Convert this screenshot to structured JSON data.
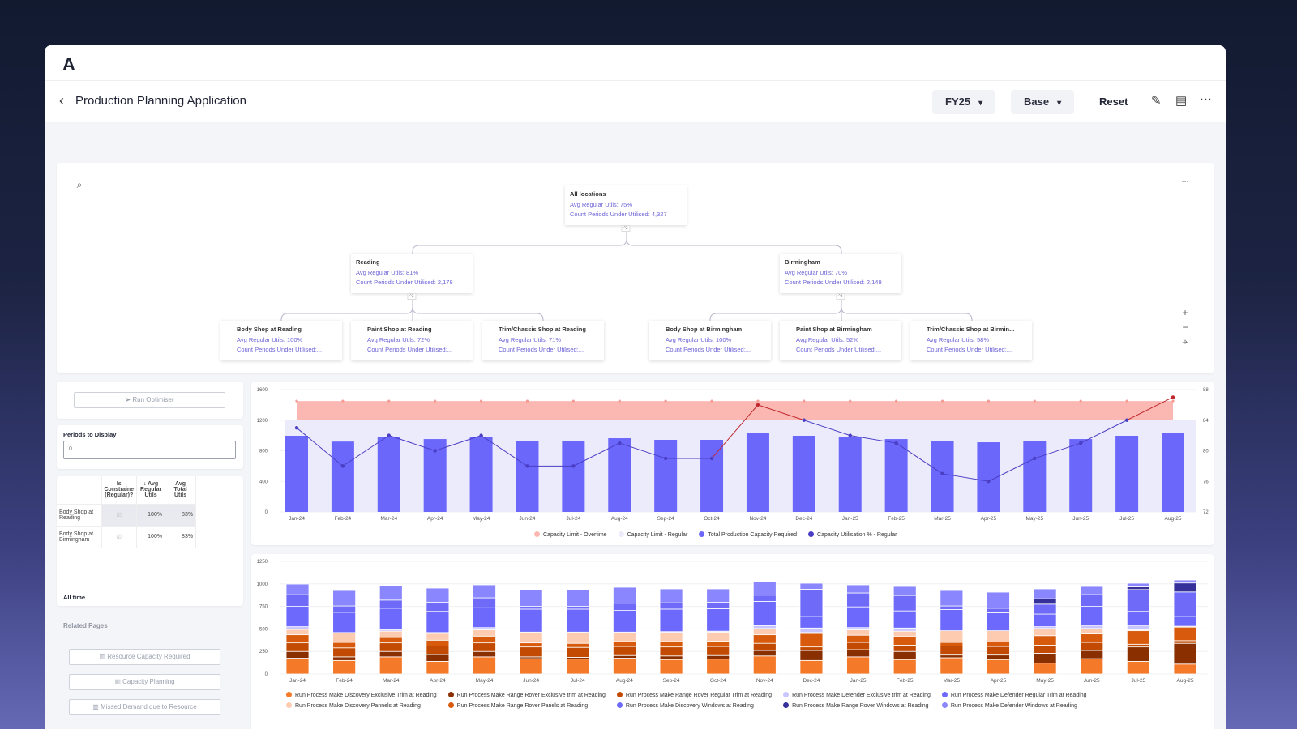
{
  "app": {
    "logo": "A",
    "title": "Production Planning Application",
    "back_icon": "chevron-left-icon",
    "fy_select": "FY25",
    "scenario_select": "Base",
    "reset_label": "Reset",
    "icons": [
      "pencil-icon",
      "comment-icon",
      "more-icon"
    ]
  },
  "tree": {
    "root": {
      "name": "All locations",
      "m1": "Avg Regular Utils: 75%",
      "m2": "Count Periods Under Utilised: 4,327",
      "expand": "^2"
    },
    "mid": [
      {
        "name": "Reading",
        "m1": "Avg Regular Utils: 81%",
        "m2": "Count Periods Under Utilised: 2,178",
        "expand": "^3"
      },
      {
        "name": "Birmingham",
        "m1": "Avg Regular Utils: 70%",
        "m2": "Count Periods Under Utilised: 2,149",
        "expand": "^3"
      }
    ],
    "leaves": [
      {
        "name": "Body Shop at Reading",
        "m1": "Avg Regular Utils: 100%",
        "m2": "Count Periods Under Utilised:..."
      },
      {
        "name": "Paint Shop at Reading",
        "m1": "Avg Regular Utils: 72%",
        "m2": "Count Periods Under Utilised:..."
      },
      {
        "name": "Trim/Chassis Shop at Reading",
        "m1": "Avg Regular Utils: 71%",
        "m2": "Count Periods Under Utilised:..."
      },
      {
        "name": "Body Shop at Birmingham",
        "m1": "Avg Regular Utils: 100%",
        "m2": "Count Periods Under Utilised:..."
      },
      {
        "name": "Paint Shop at Birmingham",
        "m1": "Avg Regular Utils: 52%",
        "m2": "Count Periods Under Utilised:..."
      },
      {
        "name": "Trim/Chassis Shop at Birmin...",
        "m1": "Avg Regular Utils: 58%",
        "m2": "Count Periods Under Utilised:..."
      }
    ],
    "controls": {
      "zoom_in": "+",
      "zoom_out": "−",
      "recenter": "⌖",
      "more": "···"
    }
  },
  "left": {
    "run_optimiser": "Run Optimiser",
    "periods_label": "Periods to Display",
    "periods_value": "0",
    "table": {
      "headers": [
        "",
        "Is Constraine (Regular)?",
        "↓ Avg Regular Utils",
        "Avg Total Utils"
      ],
      "rows": [
        {
          "name": "Body Shop at Reading",
          "constrained": true,
          "avg_regular": "100%",
          "avg_total": "83%"
        },
        {
          "name": "Body Shop at Birmingham",
          "constrained": true,
          "avg_regular": "100%",
          "avg_total": "83%"
        }
      ]
    },
    "footer": "All time",
    "related_title": "Related Pages",
    "related": [
      "Resource Capacity Required",
      "Capacity Planning",
      "Missed Demand due to Resource"
    ]
  },
  "chart_data": [
    {
      "type": "bar",
      "categories": [
        "Jan-24",
        "Feb-24",
        "Mar-24",
        "Apr-24",
        "May-24",
        "Jun-24",
        "Jul-24",
        "Aug-24",
        "Sep-24",
        "Oct-24",
        "Nov-24",
        "Dec-24",
        "Jan-25",
        "Feb-25",
        "Mar-25",
        "Apr-25",
        "May-25",
        "Jun-25",
        "Jul-25",
        "Aug-25"
      ],
      "ylim": [
        0,
        1600
      ],
      "yticks": [
        0,
        400,
        800,
        1200,
        1600
      ],
      "y2lim": [
        72,
        88
      ],
      "y2ticks": [
        72,
        76,
        80,
        84,
        88
      ],
      "series": [
        {
          "name": "Capacity Limit - Overtime",
          "kind": "area",
          "color": "#fbb8b2",
          "values": [
            1450,
            1450,
            1450,
            1450,
            1450,
            1450,
            1450,
            1450,
            1450,
            1450,
            1450,
            1450,
            1450,
            1450,
            1450,
            1450,
            1450,
            1450,
            1450,
            1450
          ]
        },
        {
          "name": "Capacity Limit - Regular",
          "kind": "area",
          "color": "#ecebfb",
          "values": [
            1200,
            1200,
            1200,
            1200,
            1200,
            1200,
            1200,
            1200,
            1200,
            1200,
            1200,
            1200,
            1200,
            1200,
            1200,
            1200,
            1200,
            1200,
            1200,
            1200
          ]
        },
        {
          "name": "Total Production Capacity Required",
          "kind": "bar",
          "color": "#6c67fb",
          "values": [
            996,
            920,
            985,
            953,
            975,
            932,
            932,
            964,
            943,
            943,
            1028,
            996,
            985,
            953,
            922,
            911,
            932,
            953,
            996,
            1038
          ]
        },
        {
          "name": "Capacity Utilisation % - Regular",
          "kind": "line",
          "axis": "right",
          "color": "#4a3fc4",
          "over_color": "#c0282e",
          "values": [
            83,
            78,
            82,
            80,
            82,
            78,
            78,
            81,
            79,
            79,
            86,
            84,
            82,
            81,
            77,
            76,
            79,
            81,
            84,
            87
          ]
        }
      ]
    },
    {
      "type": "bar",
      "stacked": true,
      "categories": [
        "Jan-24",
        "Feb-24",
        "Mar-24",
        "Apr-24",
        "May-24",
        "Jun-24",
        "Jul-24",
        "Aug-24",
        "Sep-24",
        "Oct-24",
        "Nov-24",
        "Dec-24",
        "Jan-25",
        "Feb-25",
        "Mar-25",
        "Apr-25",
        "May-25",
        "Jun-25",
        "Jul-25",
        "Aug-25"
      ],
      "ylim": [
        0,
        1250
      ],
      "yticks": [
        0,
        250,
        500,
        750,
        1000,
        1250
      ],
      "series": [
        {
          "name": "Run Process Make Discovery Exclusive Trim at Reading",
          "color": "#f47a2a",
          "values": [
            175,
            150,
            190,
            140,
            190,
            170,
            165,
            175,
            160,
            165,
            200,
            150,
            190,
            160,
            180,
            160,
            120,
            170,
            140,
            110
          ]
        },
        {
          "name": "Run Process Make Range Rover Exclusive trim at Reading",
          "color": "#8a2f00",
          "values": [
            75,
            40,
            60,
            75,
            60,
            20,
            20,
            30,
            40,
            40,
            60,
            110,
            80,
            90,
            30,
            50,
            110,
            90,
            160,
            230
          ]
        },
        {
          "name": "Run Process Make Range Rover Regular Trim at Reading",
          "color": "#c24a02",
          "values": [
            95,
            100,
            95,
            95,
            95,
            110,
            110,
            100,
            100,
            100,
            80,
            40,
            80,
            70,
            100,
            95,
            90,
            90,
            30,
            30
          ]
        },
        {
          "name": "Run Process Make Defender Exclusive trim at Reading",
          "color": "#c9c6ff",
          "values": [
            30,
            0,
            15,
            10,
            25,
            0,
            0,
            10,
            10,
            10,
            30,
            50,
            25,
            35,
            0,
            0,
            20,
            35,
            50,
            0
          ]
        },
        {
          "name": "Run Process Make Defender Regular Trim at Reading",
          "color": "#6d69fd",
          "values": [
            225,
            225,
            240,
            235,
            220,
            255,
            255,
            240,
            250,
            250,
            270,
            130,
            230,
            190,
            235,
            200,
            140,
            210,
            155,
            110
          ]
        },
        {
          "name": "Run Process Make Discovery Pannels at Reading",
          "color": "#fdcbb0",
          "values": [
            60,
            110,
            70,
            75,
            70,
            120,
            125,
            95,
            100,
            100,
            70,
            10,
            60,
            60,
            130,
            125,
            80,
            60,
            10,
            10
          ]
        },
        {
          "name": "Run Process Make Range Rover Panels at Reading",
          "color": "#d85a0c",
          "values": [
            90,
            60,
            60,
            65,
            75,
            45,
            45,
            55,
            60,
            60,
            95,
            150,
            80,
            95,
            40,
            50,
            105,
            95,
            150,
            150
          ]
        },
        {
          "name": "Run Process Make Discovery Windows at Reading",
          "color": "#6f6bf8",
          "values": [
            130,
            70,
            90,
            100,
            110,
            30,
            30,
            80,
            70,
            70,
            70,
            300,
            154,
            171,
            40,
            50,
            110,
            131,
            242,
            270
          ]
        },
        {
          "name": "Run Process Make Range Rover Windows at Reading",
          "color": "#35309a",
          "values": [
            0,
            0,
            0,
            0,
            0,
            0,
            0,
            0,
            0,
            0,
            0,
            0,
            0,
            0,
            0,
            0,
            60,
            0,
            30,
            100
          ]
        },
        {
          "name": "Run Process Make Defender Windows at Reading",
          "color": "#8986fe",
          "values": [
            118,
            171,
            160,
            158,
            144,
            185,
            185,
            177,
            154,
            149,
            150,
            67,
            90,
            100,
            171,
            178,
            109,
            90,
            40,
            33
          ]
        }
      ]
    }
  ]
}
